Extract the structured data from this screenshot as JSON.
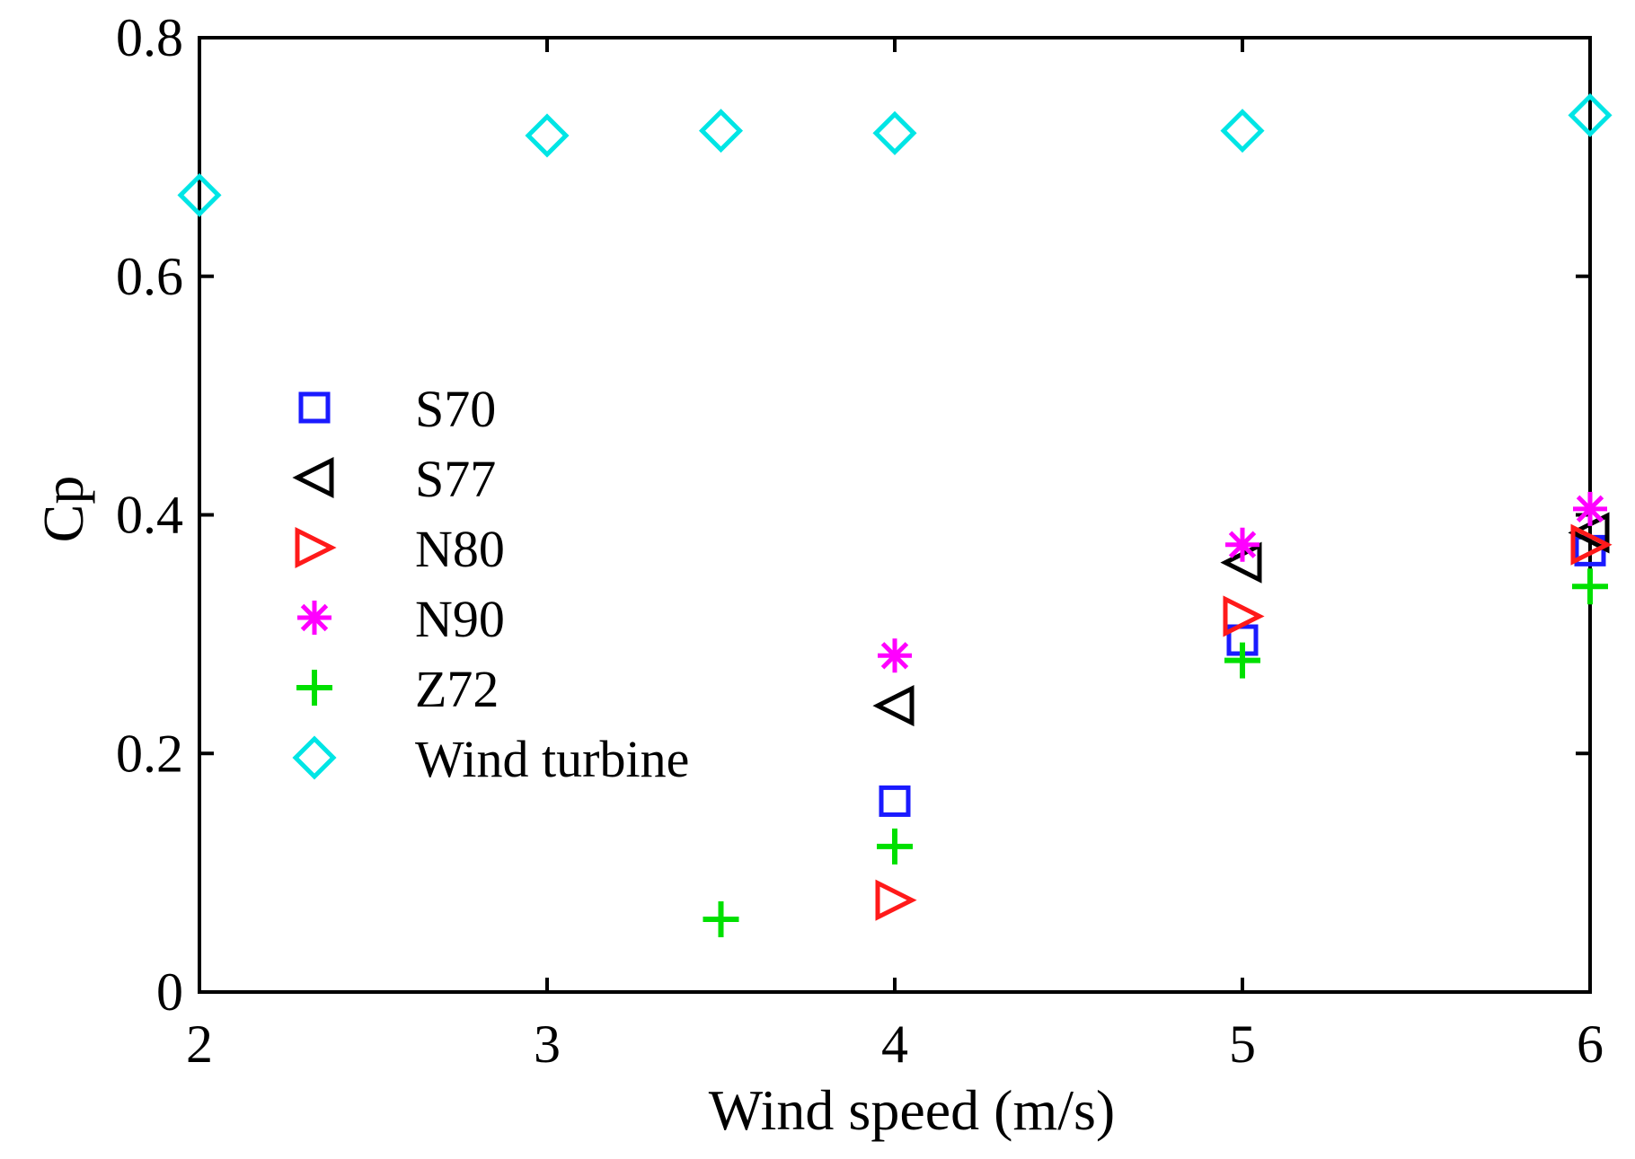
{
  "chart_data": {
    "type": "scatter",
    "title": "",
    "xlabel": "Wind speed (m/s)",
    "ylabel": "Cp",
    "xlim": [
      2,
      6
    ],
    "ylim": [
      0,
      0.8
    ],
    "xticks": [
      "2",
      "3",
      "4",
      "5",
      "6"
    ],
    "yticks": [
      "0",
      "0.2",
      "0.4",
      "0.6",
      "0.8"
    ],
    "grid": false,
    "legend_position": "center-left",
    "series": [
      {
        "name": "S70",
        "marker": "square",
        "color": "#1a1aff",
        "points": [
          [
            4,
            0.16
          ],
          [
            5,
            0.295
          ],
          [
            6,
            0.37
          ]
        ]
      },
      {
        "name": "S77",
        "marker": "triangle-left",
        "color": "#000000",
        "points": [
          [
            4,
            0.24
          ],
          [
            5,
            0.36
          ],
          [
            6,
            0.385
          ]
        ]
      },
      {
        "name": "N80",
        "marker": "triangle-right",
        "color": "#ff1a1a",
        "points": [
          [
            4,
            0.077
          ],
          [
            5,
            0.315
          ],
          [
            6,
            0.375
          ]
        ]
      },
      {
        "name": "N90",
        "marker": "asterisk",
        "color": "#ff00ff",
        "points": [
          [
            4,
            0.282
          ],
          [
            5,
            0.375
          ],
          [
            6,
            0.405
          ]
        ]
      },
      {
        "name": "Z72",
        "marker": "plus",
        "color": "#00e000",
        "points": [
          [
            3.5,
            0.061
          ],
          [
            4,
            0.122
          ],
          [
            5,
            0.278
          ],
          [
            6,
            0.34
          ]
        ]
      },
      {
        "name": "Wind turbine",
        "marker": "diamond",
        "color": "#00e5e5",
        "points": [
          [
            2,
            0.668
          ],
          [
            3,
            0.718
          ],
          [
            3.5,
            0.722
          ],
          [
            4,
            0.72
          ],
          [
            5,
            0.722
          ],
          [
            6,
            0.735
          ]
        ]
      }
    ]
  }
}
